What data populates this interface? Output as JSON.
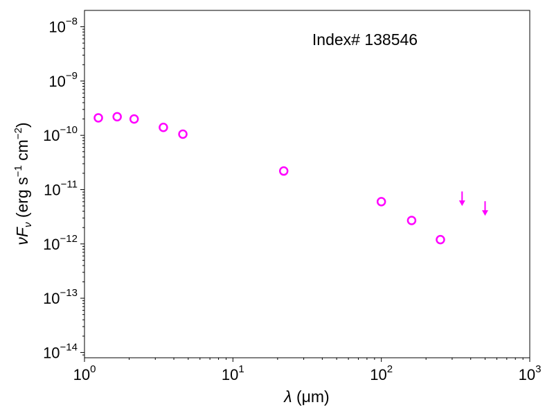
{
  "chart_data": {
    "type": "scatter",
    "title": "",
    "annotation": "Index# 138546",
    "xlabel": {
      "symbol": "λ",
      "unit": " (μm)"
    },
    "ylabel": {
      "pre": "ν",
      "f": "F",
      "sub": "ν",
      "units": " (erg s",
      "exp1": "−1",
      "mid": " cm",
      "exp2": "−2",
      "close": ")"
    },
    "xscale": "log",
    "yscale": "log",
    "xlim": [
      1,
      1000
    ],
    "ylim": [
      8e-15,
      2e-08
    ],
    "x_ticks": [
      {
        "value": 1,
        "base": "10",
        "exp": "0"
      },
      {
        "value": 10,
        "base": "10",
        "exp": "1"
      },
      {
        "value": 100,
        "base": "10",
        "exp": "2"
      },
      {
        "value": 1000,
        "base": "10",
        "exp": "3"
      }
    ],
    "y_ticks": [
      {
        "value": 1e-14,
        "base": "10",
        "exp": "−14"
      },
      {
        "value": 1e-13,
        "base": "10",
        "exp": "−13"
      },
      {
        "value": 1e-12,
        "base": "10",
        "exp": "−12"
      },
      {
        "value": 1e-11,
        "base": "10",
        "exp": "−11"
      },
      {
        "value": 1e-10,
        "base": "10",
        "exp": "−10"
      },
      {
        "value": 1e-09,
        "base": "10",
        "exp": "−9"
      },
      {
        "value": 1e-08,
        "base": "10",
        "exp": "−8"
      }
    ],
    "color": "#ff00ff",
    "series": [
      {
        "marker": "open-circle",
        "points": [
          {
            "x": 1.24,
            "y": 2.1e-10
          },
          {
            "x": 1.66,
            "y": 2.2e-10
          },
          {
            "x": 2.16,
            "y": 2e-10
          },
          {
            "x": 3.4,
            "y": 1.4e-10
          },
          {
            "x": 4.6,
            "y": 1.05e-10
          },
          {
            "x": 22,
            "y": 2.2e-11
          },
          {
            "x": 100,
            "y": 6e-12
          },
          {
            "x": 160,
            "y": 2.7e-12
          },
          {
            "x": 250,
            "y": 1.2e-12
          }
        ]
      },
      {
        "marker": "upper-limit-arrow",
        "points": [
          {
            "x": 350,
            "y": 6.5e-12
          },
          {
            "x": 500,
            "y": 4.3e-12
          }
        ]
      }
    ]
  }
}
